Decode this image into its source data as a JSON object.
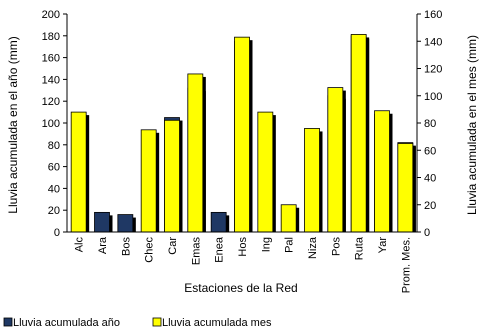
{
  "chart_data": {
    "type": "bar",
    "xlabel": "Estaciones de la Red",
    "ylabel_left": "Lluvia acumulada en el año (mm)",
    "ylabel_right": "Lluvia acumulada en el mes (mm)",
    "ylim_left": [
      0,
      200
    ],
    "ylim_right": [
      0,
      160
    ],
    "yticks_left": [
      "0",
      "20",
      "40",
      "60",
      "80",
      "100",
      "120",
      "140",
      "160",
      "180",
      "200"
    ],
    "yticks_right": [
      "0",
      "20",
      "40",
      "60",
      "80",
      "100",
      "120",
      "140",
      "160"
    ],
    "categories": [
      "Alc",
      "Ara",
      "Bos",
      "Chec",
      "Car",
      "Emas",
      "Enea",
      "Hos",
      "Ing",
      "Pal",
      "Niza",
      "Pos",
      "Ruta",
      "Yar",
      "Prom. Mes."
    ],
    "series": [
      {
        "name": "Lluvia acumulada año",
        "axis": "left",
        "color": "#1F3864",
        "values": [
          null,
          18,
          16,
          null,
          105,
          132,
          18,
          175,
          null,
          null,
          null,
          125,
          180,
          108,
          82
        ]
      },
      {
        "name": "Lluvia acumulada mes",
        "axis": "right",
        "color": "#FFFF00",
        "values": [
          88,
          null,
          null,
          75,
          82,
          116,
          null,
          143,
          88,
          20,
          76,
          106,
          145,
          89,
          65
        ]
      }
    ],
    "legend_position": "bottom-left",
    "grid": false
  }
}
